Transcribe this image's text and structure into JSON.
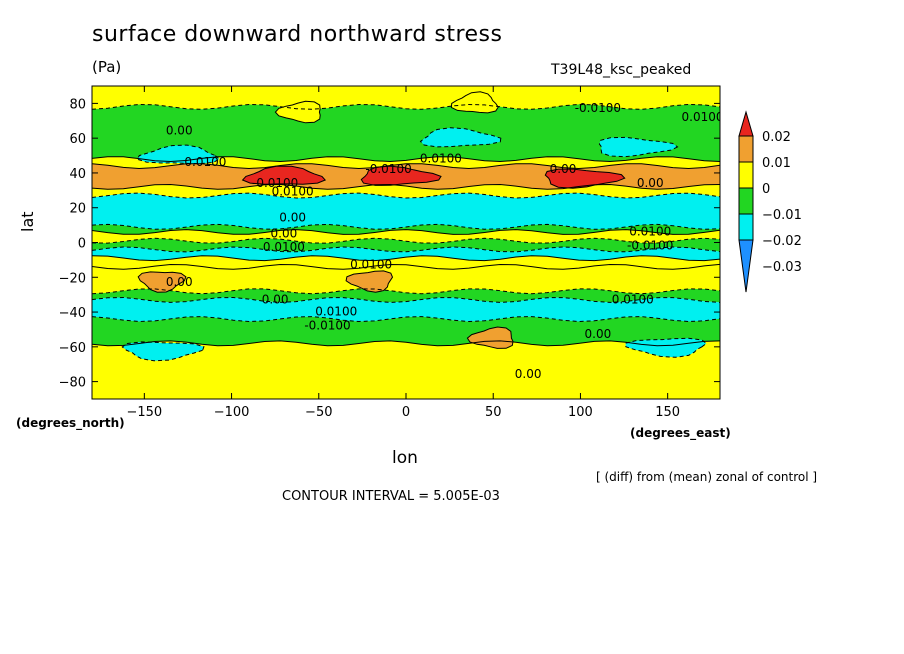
{
  "chart_data": {
    "type": "heatmap",
    "title": "surface downward northward stress",
    "units": "(Pa)",
    "experiment": "T39L48_ksc_peaked",
    "xlabel": "lon",
    "ylabel": "lat",
    "xunit": "(degrees_east)",
    "yunit": "(degrees_north)",
    "xlim": [
      -180,
      180
    ],
    "ylim": [
      -90,
      90
    ],
    "x_ticks": [
      -150,
      -100,
      -50,
      0,
      50,
      100,
      150
    ],
    "x_tick_labels": [
      "−150",
      "−100",
      "−50",
      "0",
      "50",
      "100",
      "150"
    ],
    "y_ticks": [
      80,
      60,
      40,
      20,
      0,
      -20,
      -40,
      -60,
      -80
    ],
    "y_tick_labels": [
      "80",
      "60",
      "40",
      "20",
      "0",
      "−20",
      "−40",
      "−60",
      "−80"
    ],
    "colorbar": {
      "levels": [
        0.02,
        0.01,
        0,
        -0.01,
        -0.02,
        -0.03
      ],
      "labels": [
        "0.02",
        "0.01",
        "0",
        "−0.01",
        "−0.02",
        "−0.03"
      ],
      "colors": [
        "#e8261f",
        "#f0a030",
        "#ffff00",
        "#22d622",
        "#00f0f0",
        "#1e90ff"
      ]
    },
    "contour_labels": [
      "0.00",
      "0.0100",
      "-0.0100",
      "0.0100",
      "0.00"
    ],
    "contour_interval_text": "CONTOUR INTERVAL = 5.005E-03",
    "note": "[ (diff) from (mean) zonal of control ]",
    "bands": [
      {
        "lat_max": 90,
        "lat_min": 78,
        "value": 0.0
      },
      {
        "lat_max": 78,
        "lat_min": 48,
        "value": -0.007
      },
      {
        "lat_max": 48,
        "lat_min": 44,
        "value": 0.003
      },
      {
        "lat_max": 44,
        "lat_min": 32,
        "value": 0.011
      },
      {
        "lat_max": 32,
        "lat_min": 27,
        "value": 0.0
      },
      {
        "lat_max": 27,
        "lat_min": 9,
        "value": -0.018
      },
      {
        "lat_max": 9,
        "lat_min": 6,
        "value": -0.007
      },
      {
        "lat_max": 6,
        "lat_min": 1,
        "value": 0.003
      },
      {
        "lat_max": 1,
        "lat_min": -4,
        "value": -0.007
      },
      {
        "lat_max": -4,
        "lat_min": -9,
        "value": -0.018
      },
      {
        "lat_max": -9,
        "lat_min": -14,
        "value": 0.003
      },
      {
        "lat_max": -14,
        "lat_min": -28,
        "value": 0.003
      },
      {
        "lat_max": -28,
        "lat_min": -33,
        "value": -0.007
      },
      {
        "lat_max": -33,
        "lat_min": -44,
        "value": -0.018
      },
      {
        "lat_max": -44,
        "lat_min": -58,
        "value": -0.007
      },
      {
        "lat_max": -58,
        "lat_min": -90,
        "value": 0.003
      }
    ],
    "patches": [
      {
        "lon": -70,
        "lat": 38,
        "value": 0.021
      },
      {
        "lon": -5,
        "lat": 38,
        "value": 0.021
      },
      {
        "lon": 100,
        "lat": 37,
        "value": 0.021
      },
      {
        "lon": -140,
        "lat": -22,
        "value": 0.011
      },
      {
        "lon": -20,
        "lat": -22,
        "value": 0.011
      },
      {
        "lon": 50,
        "lat": -55,
        "value": 0.011
      },
      {
        "lon": -130,
        "lat": 50,
        "value": -0.018
      },
      {
        "lon": 30,
        "lat": 60,
        "value": -0.018
      },
      {
        "lon": 130,
        "lat": 55,
        "value": -0.018
      },
      {
        "lon": -140,
        "lat": -62,
        "value": -0.018
      },
      {
        "lon": 150,
        "lat": -60,
        "value": -0.018
      },
      {
        "lon": -60,
        "lat": 75,
        "value": 0.003
      },
      {
        "lon": 40,
        "lat": 80,
        "value": 0.003
      }
    ]
  }
}
